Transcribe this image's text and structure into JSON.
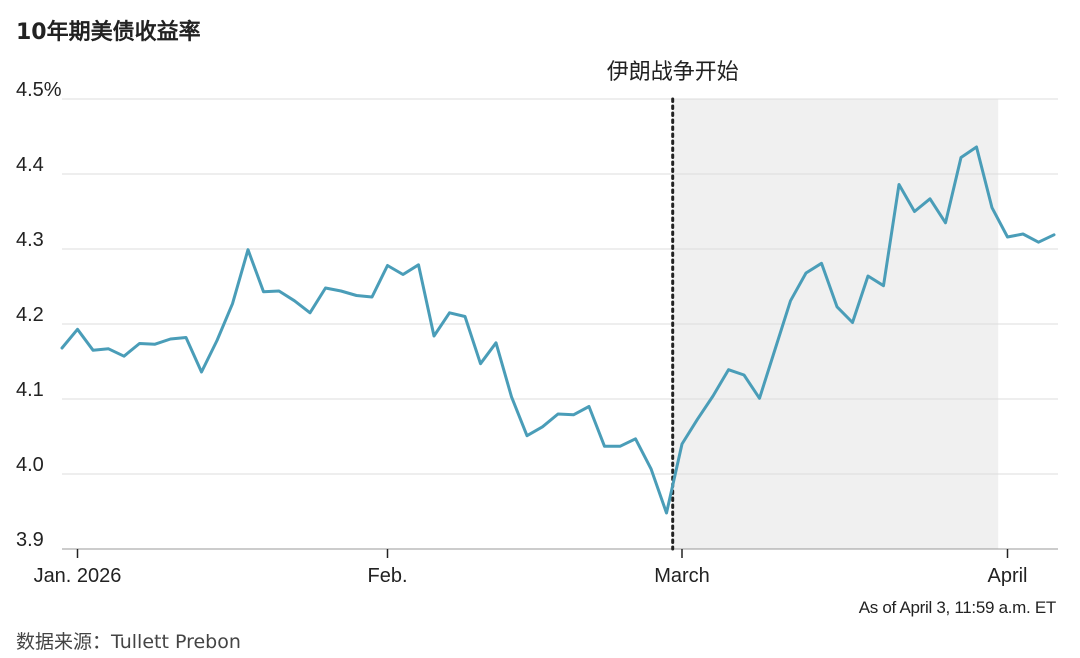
{
  "title": "10年期美债收益率",
  "source": "数据来源：Tullett Prebon",
  "as_of": "As of April 3, 11:59 a.m. ET",
  "colors": {
    "line": "#4a9db8",
    "shade": "#f0f0f0",
    "grid": "#dddddd"
  },
  "chart_data": {
    "type": "line",
    "title": "10年期美债收益率",
    "ylim": [
      3.9,
      4.5
    ],
    "y_ticks": [
      "4.5%",
      "4.4",
      "4.3",
      "4.2",
      "4.1",
      "4.0",
      "3.9"
    ],
    "y_tick_values": [
      4.5,
      4.4,
      4.3,
      4.2,
      4.1,
      4.0,
      3.9
    ],
    "x_ticks": [
      {
        "label": "Jan. 2026",
        "index": 1
      },
      {
        "label": "Feb.",
        "index": 21
      },
      {
        "label": "March",
        "index": 40
      },
      {
        "label": "April",
        "index": 61
      }
    ],
    "event": {
      "label": "伊朗战争开始",
      "index": 39.4
    },
    "shaded_from_index": 39.4,
    "shaded_to_index": 60.4,
    "series": [
      {
        "values": [
          4.168,
          4.193,
          4.165,
          4.167,
          4.157,
          4.174,
          4.173,
          4.18,
          4.182,
          4.136,
          4.178,
          4.227,
          4.299,
          4.243,
          4.244,
          4.231,
          4.215,
          4.248,
          4.244,
          4.238,
          4.236,
          4.278,
          4.266,
          4.279,
          4.184,
          4.215,
          4.21,
          4.147,
          4.175,
          4.103,
          4.051,
          4.063,
          4.08,
          4.079,
          4.09,
          4.037,
          4.037,
          4.047,
          4.007,
          3.948,
          4.04,
          4.073,
          4.104,
          4.139,
          4.132,
          4.101,
          4.166,
          4.231,
          4.268,
          4.281,
          4.223,
          4.202,
          4.264,
          4.251,
          4.386,
          4.35,
          4.367,
          4.335,
          4.422,
          4.436,
          4.355,
          4.316,
          4.32,
          4.309,
          4.319
        ]
      }
    ]
  }
}
